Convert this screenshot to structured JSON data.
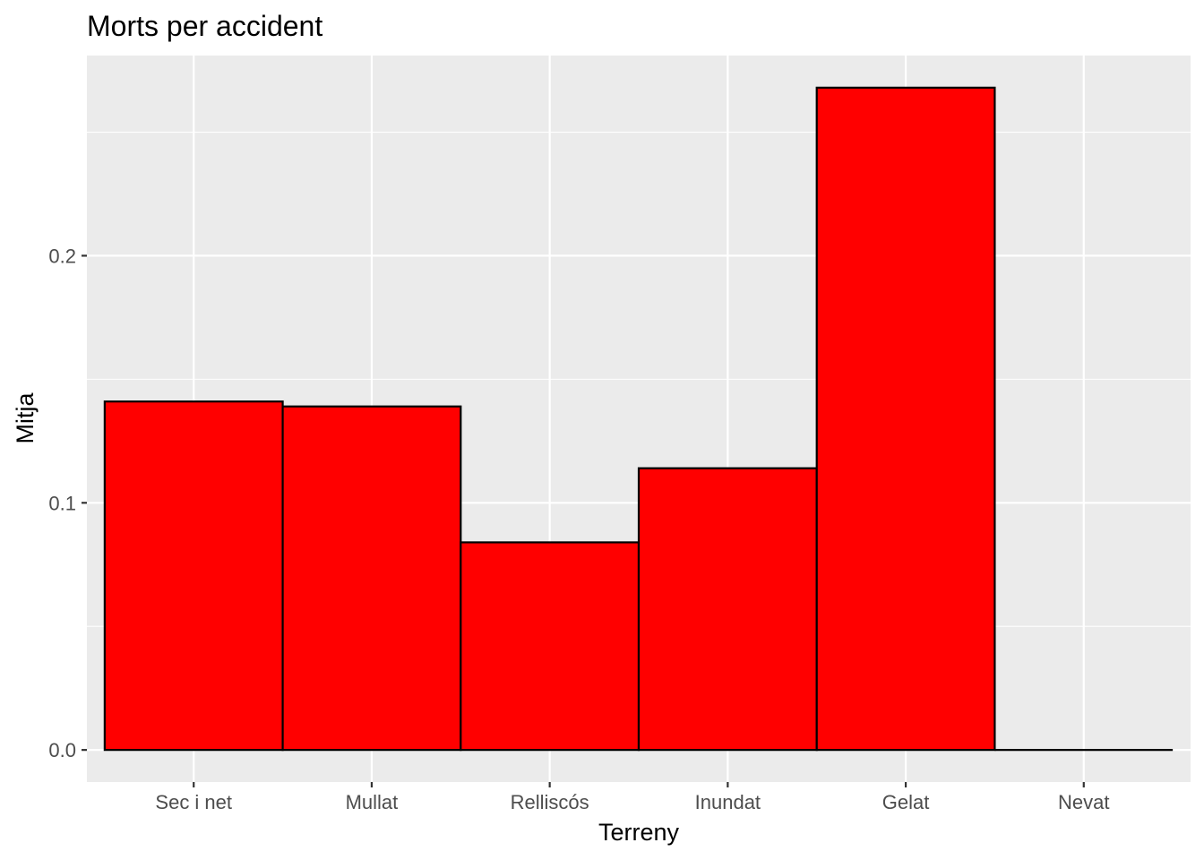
{
  "chart_data": {
    "type": "bar",
    "title": "Morts per accident",
    "xlabel": "Terreny",
    "ylabel": "Mitja",
    "categories": [
      "Sec i net",
      "Mullat",
      "Relliscós",
      "Inundat",
      "Gelat",
      "Nevat"
    ],
    "values": [
      0.141,
      0.139,
      0.084,
      0.114,
      0.268,
      0.0
    ],
    "ylim": [
      -0.013,
      0.281
    ],
    "yticks": [
      0.0,
      0.1,
      0.2
    ],
    "ytick_labels": [
      "0.0",
      "0.1",
      "0.2"
    ],
    "grid": true,
    "legend": "none",
    "colors": {
      "bar_fill": "#ff0000",
      "bar_outline": "#000000",
      "panel_background": "#ebebeb",
      "grid": "#ffffff"
    }
  }
}
